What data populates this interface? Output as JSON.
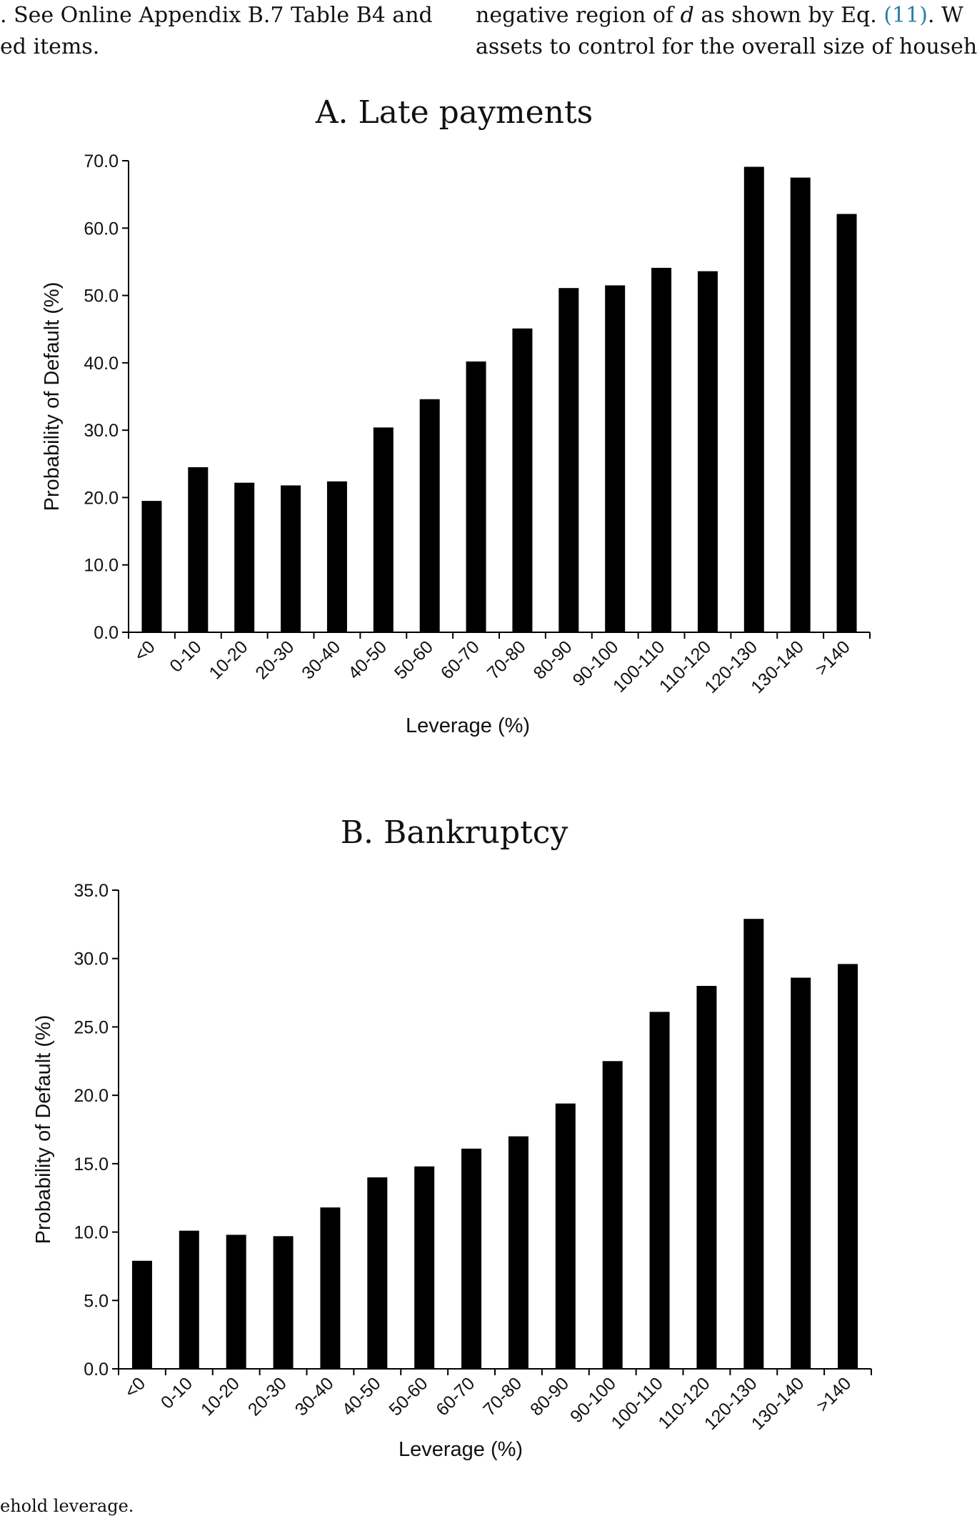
{
  "text_top": {
    "left_line1": ". See Online Appendix B.7 Table B4 and",
    "left_line2": "ed items.",
    "right_line1_a": "negative region of ",
    "right_line1_var": "d",
    "right_line1_b": " as shown by Eq. ",
    "right_line1_ref": "(11)",
    "right_line1_c": ". W",
    "right_line2": "assets to control for the overall size of househ"
  },
  "text_bottom": "ehold leverage.",
  "chart_data": [
    {
      "type": "bar",
      "title": "A. Late payments",
      "xlabel": "Leverage (%)",
      "ylabel": "Probability of Default (%)",
      "ylim": [
        0,
        70
      ],
      "yticks": [
        "0.0",
        "10.0",
        "20.0",
        "30.0",
        "40.0",
        "50.0",
        "60.0",
        "70.0"
      ],
      "categories": [
        "<0",
        "0-10",
        "10-20",
        "20-30",
        "30-40",
        "40-50",
        "50-60",
        "60-70",
        "70-80",
        "80-90",
        "90-100",
        "100-110",
        "110-120",
        "120-130",
        "130-140",
        ">140"
      ],
      "values": [
        19.5,
        24.5,
        22.2,
        21.8,
        22.4,
        30.4,
        34.6,
        40.2,
        45.1,
        51.1,
        51.5,
        54.1,
        53.6,
        69.1,
        67.5,
        62.1
      ],
      "bar_color": "#000000",
      "grid": false,
      "legend": "none"
    },
    {
      "type": "bar",
      "title": "B. Bankruptcy",
      "xlabel": "Leverage (%)",
      "ylabel": "Probability of Default (%)",
      "ylim": [
        0,
        35
      ],
      "yticks": [
        "0.0",
        "5.0",
        "10.0",
        "15.0",
        "20.0",
        "25.0",
        "30.0",
        "35.0"
      ],
      "categories": [
        "<0",
        "0-10",
        "10-20",
        "20-30",
        "30-40",
        "40-50",
        "50-60",
        "60-70",
        "70-80",
        "80-90",
        "90-100",
        "100-110",
        "110-120",
        "120-130",
        "130-140",
        ">140"
      ],
      "values": [
        7.9,
        10.1,
        9.8,
        9.7,
        11.8,
        14.0,
        14.8,
        16.1,
        17.0,
        19.4,
        22.5,
        26.1,
        28.0,
        32.9,
        28.6,
        29.6
      ],
      "bar_color": "#000000",
      "grid": false,
      "legend": "none"
    }
  ]
}
